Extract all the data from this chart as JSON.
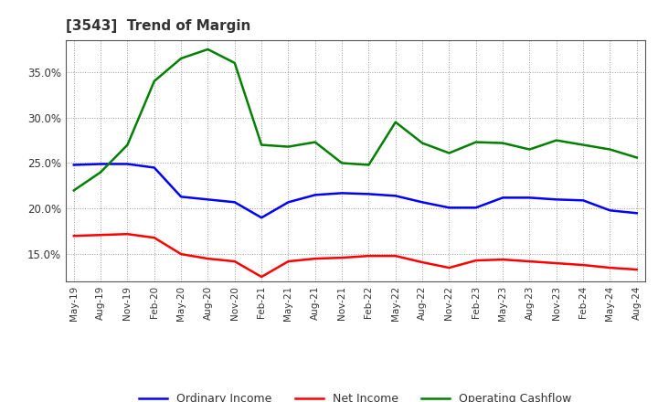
{
  "title": "[3543]  Trend of Margin",
  "x_labels": [
    "May-19",
    "Aug-19",
    "Nov-19",
    "Feb-20",
    "May-20",
    "Aug-20",
    "Nov-20",
    "Feb-21",
    "May-21",
    "Aug-21",
    "Nov-21",
    "Feb-22",
    "May-22",
    "Aug-22",
    "Nov-22",
    "Feb-23",
    "May-23",
    "Aug-23",
    "Nov-23",
    "Feb-24",
    "May-24",
    "Aug-24"
  ],
  "ordinary_income": [
    24.8,
    24.9,
    24.9,
    24.5,
    21.3,
    21.0,
    20.7,
    19.0,
    20.7,
    21.5,
    21.7,
    21.6,
    21.4,
    20.7,
    20.1,
    20.1,
    21.2,
    21.2,
    21.0,
    20.9,
    19.8,
    19.5
  ],
  "net_income": [
    17.0,
    17.1,
    17.2,
    16.8,
    15.0,
    14.5,
    14.2,
    12.5,
    14.2,
    14.5,
    14.6,
    14.8,
    14.8,
    14.1,
    13.5,
    14.3,
    14.4,
    14.2,
    14.0,
    13.8,
    13.5,
    13.3
  ],
  "operating_cashflow": [
    22.0,
    24.0,
    27.0,
    34.0,
    36.5,
    37.5,
    36.0,
    27.0,
    26.8,
    27.3,
    25.0,
    24.8,
    29.5,
    27.2,
    26.1,
    27.3,
    27.2,
    26.5,
    27.5,
    27.0,
    26.5,
    25.6
  ],
  "color_ordinary": "#0000ff",
  "color_net": "#ff0000",
  "color_cashflow": "#008000",
  "ylim_min": 12.0,
  "ylim_max": 38.5,
  "yticks": [
    15.0,
    20.0,
    25.0,
    30.0,
    35.0
  ],
  "background_color": "#ffffff",
  "grid_color": "#999999",
  "title_fontsize": 11,
  "title_color": "#333333",
  "legend_labels": [
    "Ordinary Income",
    "Net Income",
    "Operating Cashflow"
  ]
}
